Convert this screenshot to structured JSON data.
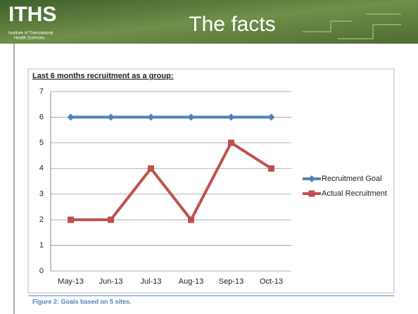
{
  "header": {
    "logo": "ITHS",
    "logo_subtitle": [
      "Institute of Translational",
      "Health Sciences"
    ],
    "title": "The facts"
  },
  "chart_data": {
    "type": "line",
    "title": "Last 6 months recruitment as a group:",
    "categories": [
      "May-13",
      "Jun-13",
      "Jul-13",
      "Aug-13",
      "Sep-13",
      "Oct-13"
    ],
    "series": [
      {
        "name": "Recruitment Goal",
        "color": "#4f81bd",
        "marker": "diamond",
        "values": [
          6,
          6,
          6,
          6,
          6,
          6
        ]
      },
      {
        "name": "Actual Recruitment",
        "color": "#c0504d",
        "marker": "square",
        "values": [
          2,
          2,
          4,
          2,
          5,
          4
        ]
      }
    ],
    "ylim": [
      0,
      7
    ],
    "yticks": [
      0,
      1,
      2,
      3,
      4,
      5,
      6,
      7
    ],
    "grid": true,
    "legend": "right"
  },
  "caption": "Figure 2: Goals based on 5 sites."
}
